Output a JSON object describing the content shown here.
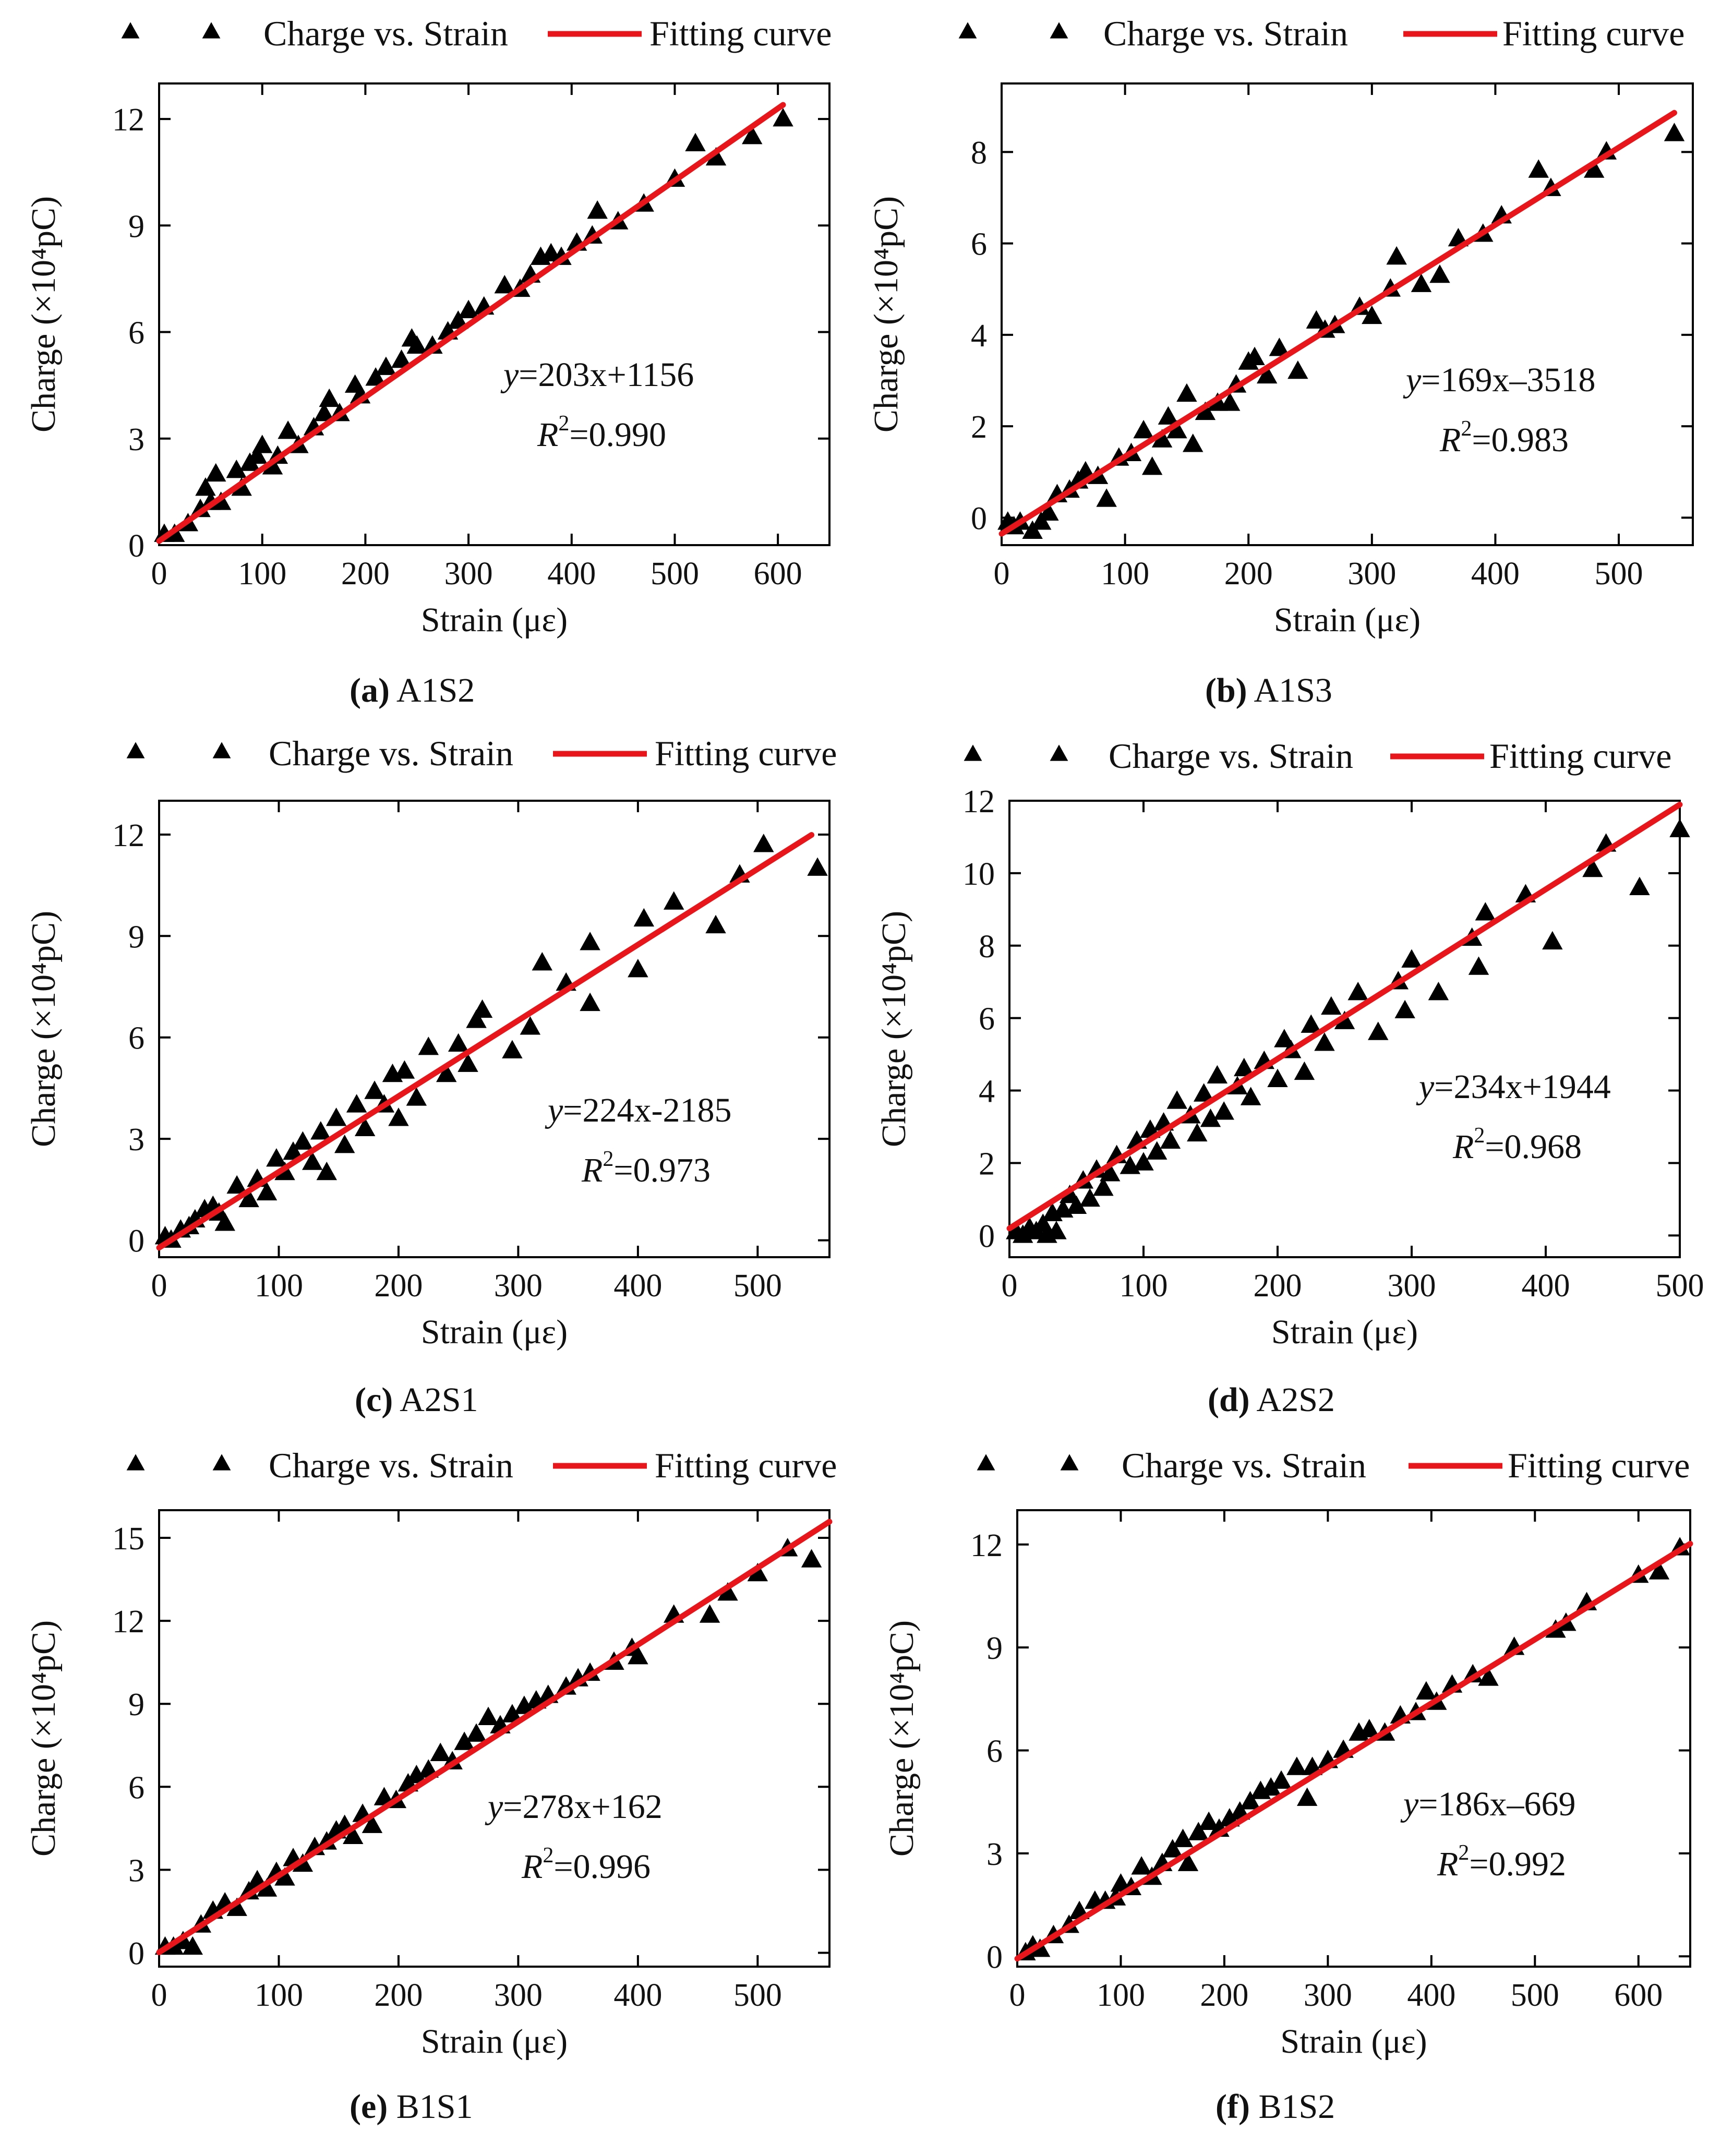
{
  "figure": {
    "legend": {
      "scatter_label": "Charge vs. Strain",
      "line_label": "Fitting curve"
    },
    "colors": {
      "points": "#000000",
      "fit_line": "#e8161b",
      "axes": "#000000"
    }
  },
  "chart_data": [
    {
      "type": "scatter",
      "id": "a",
      "caption_letter": "(a)",
      "caption_name": "A1S2",
      "title": "",
      "xlabel": "Strain (με)",
      "ylabel": "Charge (×10⁴pC)",
      "xlim": [
        0,
        650
      ],
      "ylim": [
        0,
        13
      ],
      "xticks": [
        0,
        100,
        200,
        300,
        400,
        500,
        600
      ],
      "yticks": [
        0,
        3,
        6,
        9,
        12
      ],
      "equation_y": "y",
      "equation_rest": "=203x+1156",
      "r2_label": "R",
      "r2_value": "=0.990",
      "fit": {
        "slope": 203,
        "intercept": 1156,
        "x_range": [
          0,
          605
        ]
      },
      "series": [
        {
          "name": "Charge vs. Strain",
          "x": [
            5,
            15,
            28,
            40,
            45,
            50,
            55,
            60,
            75,
            80,
            88,
            95,
            100,
            110,
            115,
            125,
            135,
            150,
            160,
            165,
            175,
            190,
            195,
            210,
            220,
            235,
            245,
            250,
            265,
            280,
            290,
            300,
            315,
            335,
            350,
            360,
            370,
            380,
            390,
            405,
            420,
            425,
            445,
            470,
            500,
            520,
            540,
            575,
            605
          ],
          "y": [
            0.3,
            0.3,
            0.6,
            1.0,
            1.6,
            1.2,
            2.0,
            1.2,
            2.1,
            1.6,
            2.3,
            2.5,
            2.8,
            2.2,
            2.5,
            3.2,
            2.8,
            3.3,
            3.7,
            4.1,
            3.7,
            4.5,
            4.2,
            4.7,
            5.0,
            5.2,
            5.8,
            5.6,
            5.6,
            6.0,
            6.3,
            6.6,
            6.7,
            7.3,
            7.2,
            7.6,
            8.1,
            8.2,
            8.1,
            8.5,
            8.7,
            9.4,
            9.1,
            9.6,
            10.3,
            11.3,
            10.9,
            11.5,
            12.0
          ]
        }
      ]
    },
    {
      "type": "scatter",
      "id": "b",
      "caption_letter": "(b)",
      "caption_name": "A1S3",
      "title": "",
      "xlabel": "Strain (με)",
      "ylabel": "Charge (×10⁴pC)",
      "xlim": [
        0,
        560
      ],
      "ylim": [
        -0.6,
        9.5
      ],
      "xticks": [
        0,
        100,
        200,
        300,
        400,
        500
      ],
      "yticks": [
        0,
        2,
        4,
        6,
        8
      ],
      "equation_y": "y",
      "equation_rest": "=169x–3518",
      "r2_label": "R",
      "r2_value": "=0.983",
      "fit": {
        "slope": 169,
        "intercept": -3518,
        "x_range": [
          0,
          545
        ]
      },
      "series": [
        {
          "name": "Charge vs. Strain",
          "x": [
            5,
            10,
            15,
            25,
            32,
            38,
            45,
            55,
            62,
            68,
            78,
            85,
            95,
            105,
            115,
            122,
            130,
            135,
            142,
            150,
            155,
            165,
            175,
            185,
            190,
            200,
            205,
            215,
            225,
            240,
            255,
            262,
            270,
            290,
            300,
            315,
            320,
            340,
            355,
            370,
            390,
            405,
            435,
            445,
            480,
            490,
            545
          ],
          "y": [
            -0.1,
            -0.2,
            -0.1,
            -0.3,
            -0.1,
            0.1,
            0.5,
            0.6,
            0.8,
            1.0,
            0.9,
            0.4,
            1.3,
            1.4,
            1.9,
            1.1,
            1.7,
            2.2,
            1.9,
            2.7,
            1.6,
            2.3,
            2.5,
            2.5,
            2.9,
            3.4,
            3.5,
            3.1,
            3.7,
            3.2,
            4.3,
            4.1,
            4.2,
            4.6,
            4.4,
            5.0,
            5.7,
            5.1,
            5.3,
            6.1,
            6.2,
            6.6,
            7.6,
            7.2,
            7.6,
            8.0,
            8.4
          ]
        }
      ]
    },
    {
      "type": "scatter",
      "id": "c",
      "caption_letter": "(c)",
      "caption_name": "A2S1",
      "title": "",
      "xlabel": "Strain (με)",
      "ylabel": "Charge (×10⁴pC)",
      "xlim": [
        0,
        560
      ],
      "ylim": [
        -0.5,
        13
      ],
      "xticks": [
        0,
        100,
        200,
        300,
        400,
        500
      ],
      "yticks": [
        0,
        3,
        6,
        9,
        12
      ],
      "equation_y": "y",
      "equation_rest": "=224x-2185",
      "r2_label": "R",
      "r2_value": "=0.973",
      "fit": {
        "slope": 224,
        "intercept": -2185,
        "x_range": [
          0,
          545
        ]
      },
      "series": [
        {
          "name": "Charge vs. Strain",
          "x": [
            5,
            10,
            18,
            25,
            30,
            38,
            45,
            50,
            55,
            65,
            75,
            82,
            90,
            98,
            105,
            112,
            120,
            128,
            135,
            140,
            148,
            155,
            165,
            172,
            180,
            188,
            195,
            200,
            205,
            215,
            225,
            240,
            250,
            258,
            265,
            270,
            295,
            310,
            320,
            340,
            360,
            360,
            400,
            405,
            430,
            465,
            485,
            505,
            550
          ],
          "y": [
            0.1,
            0.0,
            0.3,
            0.4,
            0.6,
            0.9,
            1.0,
            0.8,
            0.5,
            1.6,
            1.2,
            1.8,
            1.4,
            2.4,
            2.0,
            2.6,
            2.9,
            2.3,
            3.2,
            2.0,
            3.6,
            2.8,
            4.0,
            3.3,
            4.4,
            4.0,
            4.9,
            3.6,
            5.0,
            4.2,
            5.7,
            4.9,
            5.8,
            5.2,
            6.5,
            6.8,
            5.6,
            6.3,
            8.2,
            7.6,
            8.8,
            7.0,
            8.0,
            9.5,
            10.0,
            9.3,
            10.8,
            11.7,
            11.0
          ]
        }
      ]
    },
    {
      "type": "scatter",
      "id": "d",
      "caption_letter": "(d)",
      "caption_name": "A2S2",
      "title": "",
      "xlabel": "Strain (με)",
      "ylabel": "Charge (×10⁴pC)",
      "xlim": [
        0,
        500
      ],
      "ylim": [
        -0.6,
        12
      ],
      "xticks": [
        0,
        100,
        200,
        300,
        400,
        500
      ],
      "yticks": [
        0,
        2,
        4,
        6,
        8,
        10,
        12
      ],
      "equation_y": "y",
      "equation_rest": "=234x+1944",
      "r2_label": "R",
      "r2_value": "=0.968",
      "fit": {
        "slope": 234,
        "intercept": 1944,
        "x_range": [
          0,
          500
        ]
      },
      "series": [
        {
          "name": "Charge vs. Strain",
          "x": [
            5,
            10,
            15,
            20,
            25,
            28,
            32,
            35,
            40,
            45,
            50,
            55,
            60,
            65,
            70,
            75,
            80,
            90,
            95,
            100,
            105,
            110,
            115,
            120,
            125,
            135,
            140,
            145,
            150,
            155,
            160,
            170,
            175,
            180,
            190,
            200,
            205,
            210,
            220,
            225,
            235,
            240,
            250,
            260,
            275,
            290,
            295,
            300,
            320,
            345,
            350,
            355,
            385,
            405,
            435,
            445,
            470,
            500
          ],
          "y": [
            0.1,
            0.0,
            0.2,
            0.1,
            0.3,
            0.0,
            0.6,
            0.1,
            0.7,
            1.1,
            0.8,
            1.5,
            1.0,
            1.8,
            1.3,
            1.7,
            2.2,
            1.9,
            2.6,
            2.0,
            2.9,
            2.3,
            3.1,
            2.6,
            3.7,
            3.3,
            2.8,
            3.9,
            3.2,
            4.4,
            3.4,
            4.1,
            4.6,
            3.8,
            4.8,
            4.3,
            5.4,
            5.1,
            4.5,
            5.8,
            5.3,
            6.3,
            5.9,
            6.7,
            5.6,
            7.0,
            6.2,
            7.6,
            6.7,
            8.2,
            7.4,
            8.9,
            9.4,
            8.1,
            10.1,
            10.8,
            9.6,
            11.2
          ]
        }
      ]
    },
    {
      "type": "scatter",
      "id": "e",
      "caption_letter": "(e)",
      "caption_name": "B1S1",
      "title": "",
      "xlabel": "Strain (με)",
      "ylabel": "Charge (×10⁴pC)",
      "xlim": [
        0,
        560
      ],
      "ylim": [
        -0.5,
        16
      ],
      "xticks": [
        0,
        100,
        200,
        300,
        400,
        500
      ],
      "yticks": [
        0,
        3,
        6,
        9,
        12,
        15
      ],
      "equation_y": "y",
      "equation_rest": "=278x+162",
      "r2_label": "R",
      "r2_value": "=0.996",
      "fit": {
        "slope": 278,
        "intercept": 162,
        "x_range": [
          0,
          560
        ]
      },
      "series": [
        {
          "name": "Charge vs. Strain",
          "x": [
            5,
            12,
            20,
            28,
            35,
            45,
            55,
            65,
            75,
            82,
            90,
            98,
            105,
            112,
            120,
            130,
            140,
            148,
            155,
            162,
            170,
            178,
            188,
            198,
            208,
            215,
            225,
            235,
            245,
            255,
            265,
            275,
            285,
            295,
            305,
            315,
            325,
            340,
            350,
            360,
            380,
            395,
            400,
            430,
            460,
            475,
            500,
            525,
            545
          ],
          "y": [
            0.2,
            0.2,
            0.4,
            0.2,
            1.0,
            1.5,
            1.8,
            1.6,
            2.2,
            2.6,
            2.3,
            2.9,
            2.7,
            3.4,
            3.2,
            3.8,
            4.0,
            4.4,
            4.6,
            4.2,
            5.0,
            4.6,
            5.6,
            5.5,
            6.1,
            6.4,
            6.6,
            7.2,
            6.9,
            7.6,
            7.9,
            8.5,
            8.2,
            8.6,
            8.9,
            9.1,
            9.3,
            9.6,
            9.9,
            10.1,
            10.5,
            11.0,
            10.7,
            12.2,
            12.2,
            13.0,
            13.7,
            14.6,
            14.2
          ]
        }
      ]
    },
    {
      "type": "scatter",
      "id": "f",
      "caption_letter": "(f)",
      "caption_name": "B1S2",
      "title": "",
      "xlabel": "Strain (με)",
      "ylabel": "Charge (×10⁴pC)",
      "xlim": [
        0,
        650
      ],
      "ylim": [
        -0.3,
        13
      ],
      "xticks": [
        0,
        100,
        200,
        300,
        400,
        500,
        600
      ],
      "yticks": [
        0,
        3,
        6,
        9,
        12
      ],
      "equation_y": "y",
      "equation_rest": "=186x–669",
      "r2_label": "R",
      "r2_value": "=0.992",
      "fit": {
        "slope": 186,
        "intercept": -669,
        "x_range": [
          0,
          650
        ]
      },
      "series": [
        {
          "name": "Charge vs. Strain",
          "x": [
            8,
            15,
            22,
            35,
            50,
            60,
            75,
            85,
            95,
            100,
            110,
            120,
            130,
            140,
            150,
            160,
            165,
            175,
            185,
            195,
            205,
            215,
            225,
            235,
            245,
            255,
            270,
            280,
            285,
            300,
            315,
            330,
            340,
            355,
            370,
            385,
            395,
            405,
            420,
            440,
            455,
            480,
            520,
            530,
            550,
            600,
            620,
            640
          ],
          "y": [
            0.1,
            0.3,
            0.2,
            0.6,
            0.9,
            1.3,
            1.6,
            1.6,
            1.7,
            2.1,
            2.0,
            2.6,
            2.3,
            2.7,
            3.1,
            3.4,
            2.7,
            3.6,
            3.9,
            3.7,
            4.0,
            4.2,
            4.5,
            4.8,
            4.9,
            5.1,
            5.5,
            4.6,
            5.5,
            5.7,
            6.0,
            6.5,
            6.6,
            6.5,
            7.0,
            7.1,
            7.7,
            7.4,
            7.9,
            8.2,
            8.1,
            9.0,
            9.5,
            9.7,
            10.3,
            11.1,
            11.2,
            11.9
          ]
        }
      ]
    }
  ]
}
